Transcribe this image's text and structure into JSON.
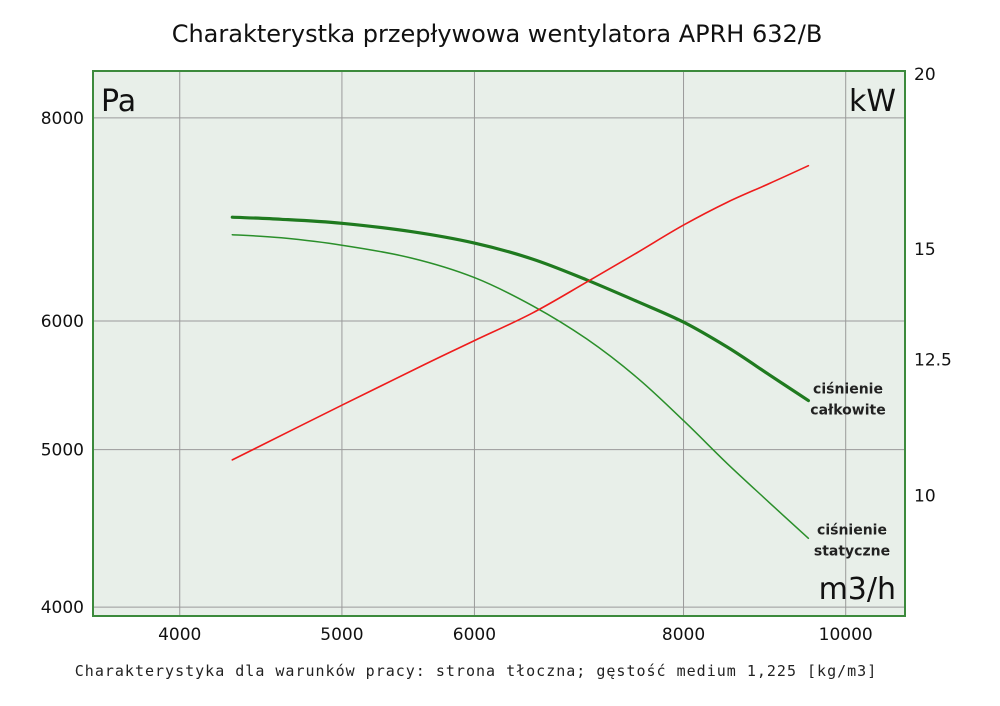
{
  "title": "Charakterystka przepływowa wentylatora APRH 632/B",
  "footnote": "Charakterystyka dla warunków pracy: strona tłoczna; gęstość medium 1,225 [kg/m3]",
  "colors": {
    "plot_bg": "#e8efe9",
    "frame": "#3c8a3c",
    "grid": "#9a9a9a",
    "total_pressure": "#1f7a1f",
    "static_pressure": "#2a8f2a",
    "power": "#ee1c1c"
  },
  "chart_data": {
    "type": "line",
    "scale": "log-log",
    "grid": true,
    "x_unit": "m3/h",
    "y_left_unit": "Pa",
    "y_right_unit": "kW",
    "xlim": [
      3550,
      10850
    ],
    "ylim_left": [
      3950,
      8550
    ],
    "ylim_right": [
      8.2,
      20.1
    ],
    "x_ticks": [
      4000,
      5000,
      6000,
      8000,
      10000
    ],
    "y_left_ticks": [
      4000,
      5000,
      6000,
      8000
    ],
    "y_right_ticks": [
      10,
      12.5,
      15,
      20
    ],
    "series": [
      {
        "key": "total",
        "axis": "left",
        "label": [
          "ciśnienie",
          "całkowite"
        ],
        "stroke_width": 3.2,
        "points": [
          [
            4300,
            6950
          ],
          [
            4600,
            6930
          ],
          [
            5000,
            6890
          ],
          [
            5500,
            6810
          ],
          [
            6000,
            6700
          ],
          [
            6500,
            6550
          ],
          [
            7000,
            6360
          ],
          [
            7500,
            6170
          ],
          [
            8000,
            5990
          ],
          [
            8500,
            5780
          ],
          [
            9000,
            5560
          ],
          [
            9500,
            5360
          ]
        ]
      },
      {
        "key": "static",
        "axis": "left",
        "label": [
          "ciśnienie",
          "statyczne"
        ],
        "stroke_width": 1.5,
        "points": [
          [
            4300,
            6780
          ],
          [
            4600,
            6750
          ],
          [
            5000,
            6680
          ],
          [
            5500,
            6560
          ],
          [
            6000,
            6380
          ],
          [
            6500,
            6130
          ],
          [
            7000,
            5850
          ],
          [
            7500,
            5540
          ],
          [
            8000,
            5210
          ],
          [
            8500,
            4900
          ],
          [
            9000,
            4640
          ],
          [
            9500,
            4410
          ]
        ]
      },
      {
        "key": "power",
        "axis": "right",
        "points": [
          [
            4300,
            10.6
          ],
          [
            5000,
            11.6
          ],
          [
            5600,
            12.4
          ],
          [
            6000,
            12.9
          ],
          [
            6500,
            13.5
          ],
          [
            7000,
            14.2
          ],
          [
            7500,
            14.9
          ],
          [
            8000,
            15.6
          ],
          [
            8500,
            16.2
          ],
          [
            9000,
            16.7
          ],
          [
            9500,
            17.2
          ]
        ]
      }
    ]
  }
}
